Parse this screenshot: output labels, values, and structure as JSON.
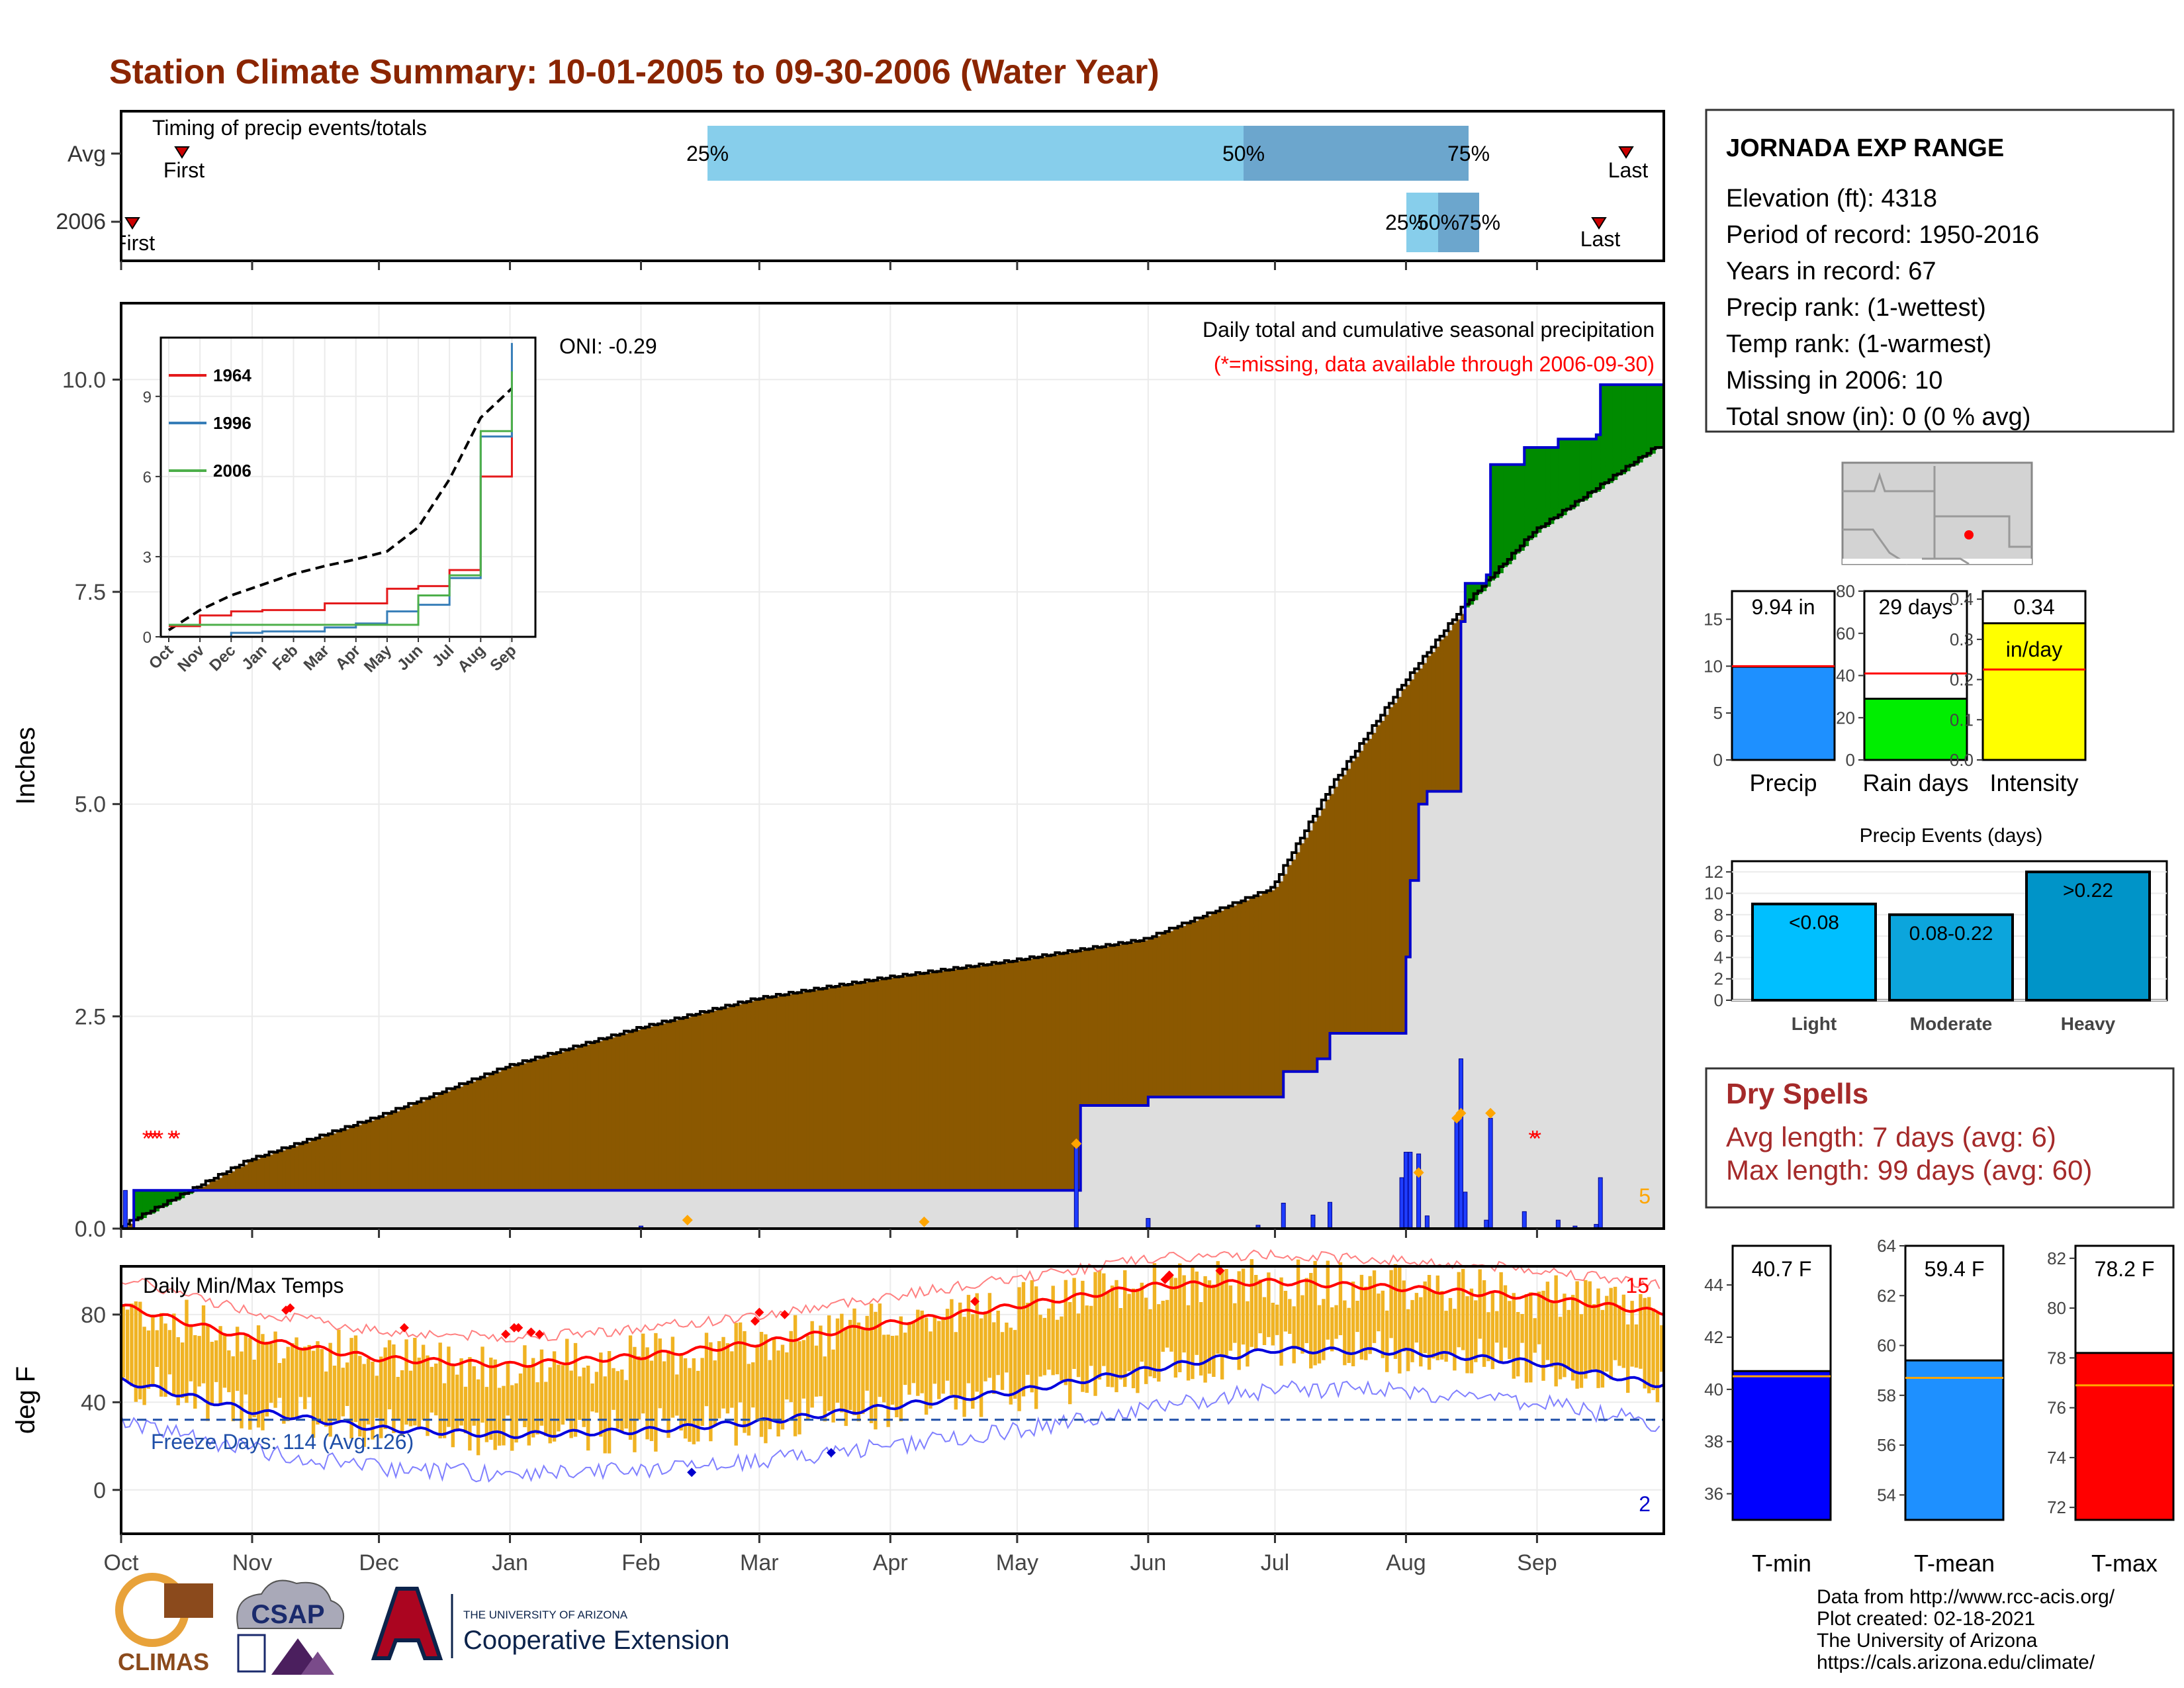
{
  "page": {
    "title": "Station Climate Summary: 10-01-2005 to 09-30-2006 (Water Year)",
    "title_color": "#8B2500"
  },
  "timing_panel": {
    "label": "Timing of precip events/totals",
    "rows": [
      "Avg",
      "2006"
    ],
    "avg": {
      "first": "First",
      "last": "Last",
      "p25": "25%",
      "p50": "50%",
      "p75": "75%"
    },
    "y2006": {
      "first": "First",
      "last": "Last",
      "p25": "25%",
      "p50": "50%",
      "p75": "75%"
    }
  },
  "precip_panel": {
    "ylabel": "Inches",
    "oni": "ONI: -0.29",
    "subtitle": "Daily total and cumulative seasonal precipitation",
    "missing_note": "(*=missing, data available through 2006-09-30)",
    "corner_count": "5",
    "yticks": [
      "0.0",
      "2.5",
      "5.0",
      "7.5",
      "10.0"
    ]
  },
  "inset": {
    "yticks": [
      "0",
      "3",
      "6",
      "9"
    ],
    "months": [
      "Oct",
      "Nov",
      "Dec",
      "Jan",
      "Feb",
      "Mar",
      "Apr",
      "May",
      "Jun",
      "Jul",
      "Aug",
      "Sep"
    ],
    "legend": [
      {
        "name": "1964",
        "color": "#e41a1c"
      },
      {
        "name": "1996",
        "color": "#377eb8"
      },
      {
        "name": "2006",
        "color": "#4daf4a"
      }
    ]
  },
  "temp_panel": {
    "ylabel": "deg F",
    "label": "Daily Min/Max Temps",
    "freeze_note": "Freeze Days: 114 (Avg:126)",
    "record_high_count": "15",
    "record_low_count": "2",
    "yticks": [
      "0",
      "40",
      "80"
    ]
  },
  "x_months": [
    "Oct",
    "Nov",
    "Dec",
    "Jan",
    "Feb",
    "Mar",
    "Apr",
    "May",
    "Jun",
    "Jul",
    "Aug",
    "Sep"
  ],
  "station": {
    "name": "JORNADA EXP RANGE",
    "lines": [
      "Elevation (ft): 4318",
      "Period of record: 1950-2016",
      "Years in record: 67",
      "Precip rank:  (1-wettest)",
      "Temp rank:  (1-warmest)",
      "Missing in 2006: 10",
      "Total snow (in): 0 (0 % avg)"
    ]
  },
  "summary_bars": [
    {
      "label": "Precip",
      "value_text": "9.94 in",
      "value": 9.94,
      "avg": 10.0,
      "ymax": 18.0,
      "ticks": [
        "0",
        "5",
        "10",
        "15"
      ],
      "tick_values": [
        0,
        5,
        10,
        15
      ],
      "color": "#1e90ff"
    },
    {
      "label": "Rain days",
      "value_text": "29 days",
      "value": 29,
      "avg": 41,
      "ymax": 80,
      "ticks": [
        "0",
        "20",
        "40",
        "60",
        "80"
      ],
      "tick_values": [
        0,
        20,
        40,
        60,
        80
      ],
      "color": "#00ee00"
    },
    {
      "label": "Intensity",
      "value_text": "0.34",
      "value_text2": "in/day",
      "value": 0.34,
      "avg": 0.225,
      "ymax": 0.42,
      "ticks": [
        "0.0",
        "0.1",
        "0.2",
        "0.3",
        "0.4"
      ],
      "tick_values": [
        0,
        0.1,
        0.2,
        0.3,
        0.4
      ],
      "color": "#ffff00"
    }
  ],
  "precip_events": {
    "title": "Precip Events (days)",
    "ticks": [
      "0",
      "2",
      "4",
      "6",
      "8",
      "10",
      "12"
    ],
    "bars": [
      {
        "label": "Light",
        "range": "<0.08",
        "value": 9,
        "color": "#00bfff"
      },
      {
        "label": "Moderate",
        "range": "0.08-0.22",
        "value": 8,
        "color": "#0ca5dc"
      },
      {
        "label": "Heavy",
        "range": ">0.22",
        "value": 12,
        "color": "#0094c8"
      }
    ]
  },
  "dry_spells": {
    "title": "Dry Spells",
    "avg_length": "Avg length: 7 days (avg: 6)",
    "max_length": "Max length: 99 days (avg: 60)"
  },
  "temp_bars": [
    {
      "label": "T-min",
      "value_text": "40.7 F",
      "value": 40.7,
      "avg": 40.5,
      "ymin": 35,
      "ymax": 45.5,
      "ticks": [
        "36",
        "38",
        "40",
        "42",
        "44"
      ],
      "tick_values": [
        36,
        38,
        40,
        42,
        44
      ],
      "color": "#0000ff"
    },
    {
      "label": "T-mean",
      "value_text": "59.4 F",
      "value": 59.4,
      "avg": 58.7,
      "ymin": 53,
      "ymax": 64,
      "ticks": [
        "54",
        "56",
        "58",
        "60",
        "62",
        "64"
      ],
      "tick_values": [
        54,
        56,
        58,
        60,
        62,
        64
      ],
      "color": "#1e90ff"
    },
    {
      "label": "T-max",
      "value_text": "78.2 F",
      "value": 78.2,
      "avg": 76.9,
      "ymin": 71.5,
      "ymax": 82.5,
      "ticks": [
        "72",
        "74",
        "76",
        "78",
        "80",
        "82"
      ],
      "tick_values": [
        72,
        74,
        76,
        78,
        80,
        82
      ],
      "color": "#ff0000"
    }
  ],
  "footer": {
    "lines": [
      "Data from http://www.rcc-acis.org/",
      "Plot created: 02-18-2021",
      "The University of Arizona",
      "https://cals.arizona.edu/climate/"
    ],
    "climas": "CLIMAS",
    "csap": "CSAP",
    "ua_small": "THE UNIVERSITY OF ARIZONA",
    "ua_big": "Cooperative Extension"
  },
  "chart_data": [
    {
      "type": "area",
      "title": "Daily total and cumulative seasonal precipitation",
      "ylabel": "Inches",
      "ylim": [
        0,
        10.9
      ],
      "x_range": [
        "2005-10-01",
        "2006-09-30"
      ],
      "series": [
        {
          "name": "2006",
          "points": [
            [
              "2005-10-01",
              0.0
            ],
            [
              "2005-10-04",
              0.45
            ],
            [
              "2005-10-14",
              0.45
            ],
            [
              "2006-05-15",
              0.45
            ],
            [
              "2006-05-16",
              1.45
            ],
            [
              "2006-06-01",
              1.55
            ],
            [
              "2006-07-03",
              1.85
            ],
            [
              "2006-07-11",
              2.0
            ],
            [
              "2006-07-14",
              2.3
            ],
            [
              "2006-07-31",
              2.3
            ],
            [
              "2006-08-01",
              3.2
            ],
            [
              "2006-08-02",
              4.1
            ],
            [
              "2006-08-04",
              5.0
            ],
            [
              "2006-08-06",
              5.15
            ],
            [
              "2006-08-13",
              5.15
            ],
            [
              "2006-08-14",
              7.15
            ],
            [
              "2006-08-15",
              7.6
            ],
            [
              "2006-08-20",
              7.7
            ],
            [
              "2006-08-21",
              9.0
            ],
            [
              "2006-08-29",
              9.2
            ],
            [
              "2006-09-06",
              9.3
            ],
            [
              "2006-09-15",
              9.35
            ],
            [
              "2006-09-16",
              9.94
            ],
            [
              "2006-09-30",
              9.94
            ]
          ]
        },
        {
          "name": "Avg",
          "points": [
            [
              "2005-10-01",
              0.0
            ],
            [
              "2005-11-01",
              0.8
            ],
            [
              "2005-12-01",
              1.3
            ],
            [
              "2006-01-01",
              1.9
            ],
            [
              "2006-02-01",
              2.35
            ],
            [
              "2006-03-01",
              2.7
            ],
            [
              "2006-04-01",
              2.95
            ],
            [
              "2006-05-01",
              3.15
            ],
            [
              "2006-06-01",
              3.4
            ],
            [
              "2006-07-01",
              4.0
            ],
            [
              "2006-07-15",
              5.2
            ],
            [
              "2006-08-01",
              6.4
            ],
            [
              "2006-08-15",
              7.3
            ],
            [
              "2006-09-01",
              8.2
            ],
            [
              "2006-09-30",
              9.2
            ]
          ]
        }
      ],
      "daily_bars": [
        [
          "2005-10-02",
          0.45
        ],
        [
          "2006-02-01",
          0.03
        ],
        [
          "2006-05-15",
          1.0
        ],
        [
          "2006-06-01",
          0.12
        ],
        [
          "2006-06-27",
          0.04
        ],
        [
          "2006-07-03",
          0.3
        ],
        [
          "2006-07-10",
          0.16
        ],
        [
          "2006-07-14",
          0.31
        ],
        [
          "2006-07-31",
          0.6
        ],
        [
          "2006-08-01",
          0.9
        ],
        [
          "2006-08-02",
          0.9
        ],
        [
          "2006-08-04",
          0.88
        ],
        [
          "2006-08-06",
          0.15
        ],
        [
          "2006-08-13",
          1.3
        ],
        [
          "2006-08-14",
          2.0
        ],
        [
          "2006-08-15",
          0.43
        ],
        [
          "2006-08-20",
          0.1
        ],
        [
          "2006-08-21",
          1.3
        ],
        [
          "2006-08-29",
          0.2
        ],
        [
          "2006-09-06",
          0.1
        ],
        [
          "2006-09-10",
          0.03
        ],
        [
          "2006-09-15",
          0.05
        ],
        [
          "2006-09-16",
          0.6
        ]
      ]
    },
    {
      "type": "line",
      "title": "",
      "x": [
        "Oct",
        "Nov",
        "Dec",
        "Jan",
        "Feb",
        "Mar",
        "Apr",
        "May",
        "Jun",
        "Jul",
        "Aug",
        "Sep"
      ],
      "ylim": [
        0,
        11.2
      ],
      "series": [
        {
          "name": "1964",
          "values": [
            0.4,
            0.8,
            0.95,
            1.0,
            1.0,
            1.25,
            1.25,
            1.8,
            1.9,
            2.5,
            6.0,
            8.7
          ]
        },
        {
          "name": "1996",
          "values": [
            0.0,
            0.0,
            0.15,
            0.2,
            0.2,
            0.35,
            0.5,
            0.95,
            1.2,
            2.2,
            7.5,
            11.0
          ]
        },
        {
          "name": "2006",
          "values": [
            0.45,
            0.45,
            0.45,
            0.45,
            0.45,
            0.45,
            0.45,
            0.45,
            1.55,
            2.3,
            7.7,
            9.94
          ]
        }
      ]
    },
    {
      "type": "line",
      "title": "Daily Min/Max Temps",
      "ylabel": "deg F",
      "ylim": [
        -20,
        102
      ],
      "freeze_line": 32,
      "series": [
        {
          "name": "Avg max",
          "points": [
            [
              "2005-10-01",
              84
            ],
            [
              "2005-11-01",
              69
            ],
            [
              "2005-12-01",
              60
            ],
            [
              "2006-01-01",
              57
            ],
            [
              "2006-02-01",
              61
            ],
            [
              "2006-03-01",
              67
            ],
            [
              "2006-04-01",
              76
            ],
            [
              "2006-05-01",
              84
            ],
            [
              "2006-06-01",
              93
            ],
            [
              "2006-07-01",
              95
            ],
            [
              "2006-08-01",
              92
            ],
            [
              "2006-09-01",
              88
            ],
            [
              "2006-09-30",
              81
            ]
          ]
        },
        {
          "name": "Avg min",
          "points": [
            [
              "2005-10-01",
              50
            ],
            [
              "2005-11-01",
              36
            ],
            [
              "2005-12-01",
              28
            ],
            [
              "2006-01-01",
              25
            ],
            [
              "2006-02-01",
              27
            ],
            [
              "2006-03-01",
              31
            ],
            [
              "2006-04-01",
              38
            ],
            [
              "2006-05-01",
              45
            ],
            [
              "2006-06-01",
              55
            ],
            [
              "2006-07-01",
              64
            ],
            [
              "2006-08-01",
              63
            ],
            [
              "2006-09-01",
              58
            ],
            [
              "2006-09-30",
              48
            ]
          ]
        }
      ]
    },
    {
      "type": "bar",
      "categories": [
        "Precip",
        "Rain days",
        "Intensity"
      ],
      "values": [
        9.94,
        29,
        0.34
      ]
    },
    {
      "type": "bar",
      "title": "Precip Events (days)",
      "categories": [
        "Light",
        "Moderate",
        "Heavy"
      ],
      "values": [
        9,
        8,
        12
      ]
    },
    {
      "type": "bar",
      "categories": [
        "T-min",
        "T-mean",
        "T-max"
      ],
      "values": [
        40.7,
        59.4,
        78.2
      ]
    }
  ]
}
